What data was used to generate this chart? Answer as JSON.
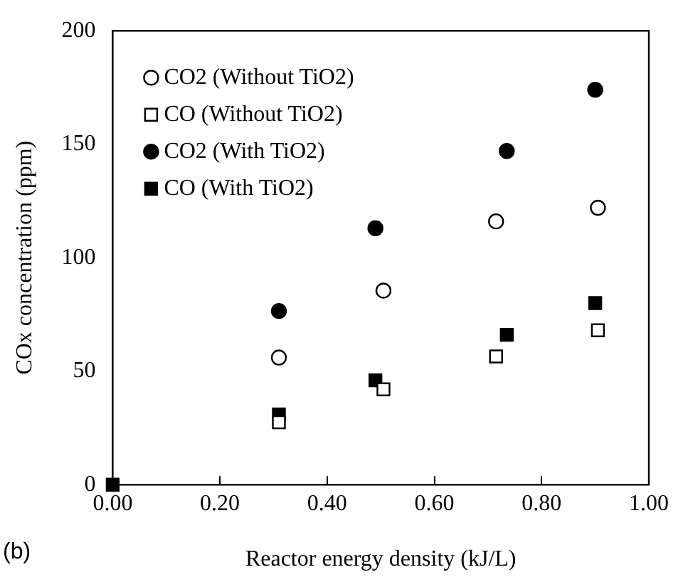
{
  "chart_data": {
    "type": "scatter",
    "xlabel": "Reactor energy density (kJ/L)",
    "ylabel": "COx concentration (ppm)",
    "annotations": [
      "(b)"
    ],
    "xlim": [
      0,
      1
    ],
    "xticks": [
      {
        "value": 0,
        "label": "0.00"
      },
      {
        "value": 0.2,
        "label": "0.20"
      },
      {
        "value": 0.4,
        "label": "0.40"
      },
      {
        "value": 0.6,
        "label": "0.60"
      },
      {
        "value": 0.8,
        "label": "0.80"
      },
      {
        "value": 1,
        "label": "1.00"
      }
    ],
    "ylim": [
      0,
      200
    ],
    "yticks": [
      0,
      50,
      100,
      150,
      200
    ],
    "grid": false,
    "legend": "top left",
    "series": [
      {
        "name": "CO2 (Without TiO2)",
        "color": "#ffffff",
        "marker": "circle",
        "x": [
          0.31,
          0.505,
          0.715,
          0.905
        ],
        "values": [
          56,
          85.5,
          116,
          122
        ]
      },
      {
        "name": "CO (Without TiO2)",
        "color": "#ffffff",
        "marker": "square",
        "x": [
          0.31,
          0.505,
          0.715,
          0.905
        ],
        "values": [
          27.5,
          42,
          56.5,
          68
        ]
      },
      {
        "name": "CO2 (With TiO2)",
        "color": "#000000",
        "marker": "circle",
        "x": [
          0.31,
          0.49,
          0.735,
          0.9
        ],
        "values": [
          76.5,
          113,
          147,
          174
        ]
      },
      {
        "name": "CO (With TiO2)",
        "color": "#000000",
        "marker": "square",
        "x": [
          0,
          0.31,
          0.49,
          0.735,
          0.9
        ],
        "values": [
          0,
          31,
          46,
          66,
          80
        ]
      }
    ]
  }
}
